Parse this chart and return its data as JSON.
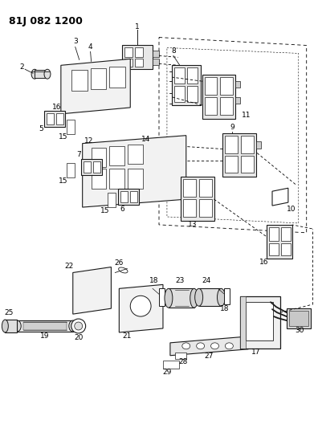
{
  "title": "81J 082 1200",
  "bg_color": "#ffffff",
  "line_color": "#1a1a1a",
  "gray": "#888888",
  "lightgray": "#cccccc",
  "fig_width": 3.96,
  "fig_height": 5.33,
  "dpi": 100
}
